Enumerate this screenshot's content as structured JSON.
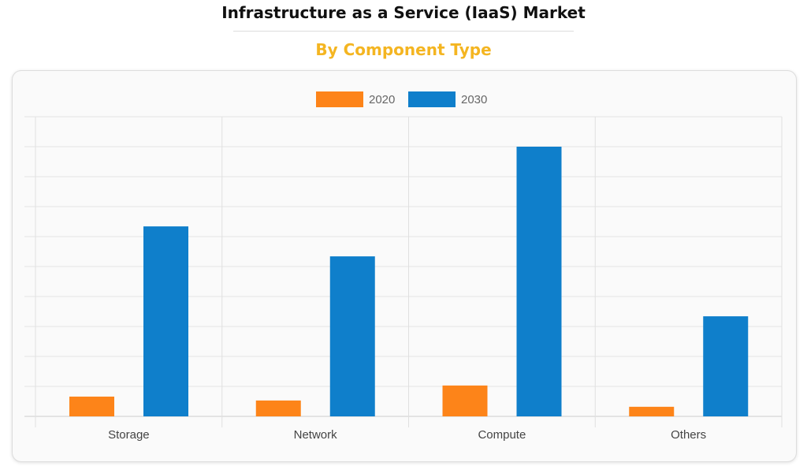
{
  "title": "Infrastructure as a Service (IaaS) Market",
  "subtitle": "By Component Type",
  "chart_data": {
    "type": "bar",
    "categories": [
      "Storage",
      "Network",
      "Compute",
      "Others"
    ],
    "series": [
      {
        "name": "2020",
        "color": "#fd8419",
        "values": [
          0.66,
          0.53,
          1.03,
          0.32
        ]
      },
      {
        "name": "2030",
        "color": "#0f7fcb",
        "values": [
          6.34,
          5.34,
          9.0,
          3.34
        ]
      }
    ],
    "ylim": [
      0,
      10
    ],
    "grid": true,
    "legend": "top-center",
    "xlabel": "",
    "ylabel": ""
  }
}
